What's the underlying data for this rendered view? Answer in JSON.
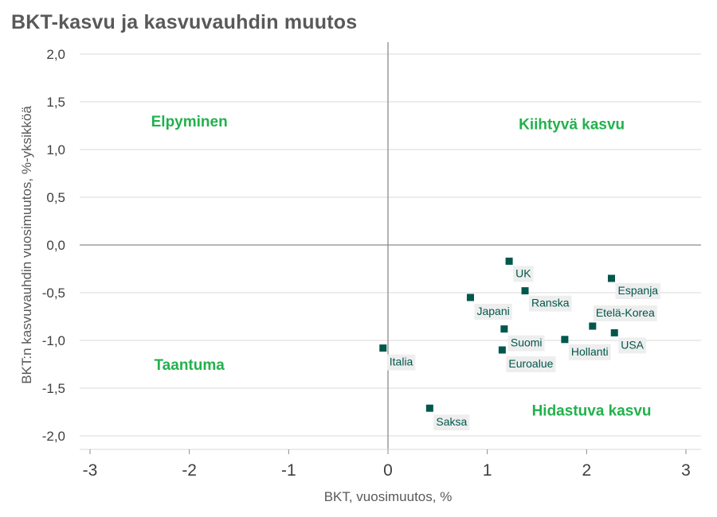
{
  "title": "BKT-kasvu ja kasvuvauhdin muutos",
  "colors": {
    "marker": "#00574b",
    "quadrant": "#22b14c",
    "grid": "#d9d9d9",
    "axis": "#8c8c8c",
    "label_bg": "#eeeeee"
  },
  "chart_data": {
    "type": "scatter",
    "title": "BKT-kasvu ja kasvuvauhdin muutos",
    "xlabel": "BKT, vuosimuutos, %",
    "ylabel": "BKT:n kasvuvauhdin vuosimuutos, %-yksikköä",
    "xlim": [
      -3,
      3
    ],
    "ylim": [
      -2,
      2
    ],
    "x_ticks": [
      -3,
      -2,
      -1,
      0,
      1,
      2,
      3
    ],
    "x_tick_labels": [
      "-3",
      "-2",
      "-1",
      "0",
      "1",
      "2",
      "3"
    ],
    "y_ticks": [
      2,
      1.5,
      1,
      0.5,
      0,
      -0.5,
      -1,
      -1.5,
      -2
    ],
    "y_tick_labels": [
      "2,0",
      "1,5",
      "1,0",
      "0,5",
      "0,0",
      "-0,5",
      "-1,0",
      "-1,5",
      "-2,0"
    ],
    "grid": "horizontal",
    "quadrant_labels": [
      {
        "text": "Elpyminen",
        "x": -2.0,
        "y": 1.3
      },
      {
        "text": "Kiihtyvä kasvu",
        "x": 1.85,
        "y": 1.27
      },
      {
        "text": "Taantuma",
        "x": -2.0,
        "y": -1.25
      },
      {
        "text": "Hidastuva kasvu",
        "x": 2.05,
        "y": -1.73
      }
    ],
    "points": [
      {
        "label": "UK",
        "x": 1.22,
        "y": -0.17
      },
      {
        "label": "Espanja",
        "x": 2.25,
        "y": -0.35
      },
      {
        "label": "Ranska",
        "x": 1.38,
        "y": -0.48
      },
      {
        "label": "Japani",
        "x": 0.83,
        "y": -0.55
      },
      {
        "label": "Etelä-Korea",
        "x": 2.06,
        "y": -0.85
      },
      {
        "label": "Suomi",
        "x": 1.17,
        "y": -0.88
      },
      {
        "label": "USA",
        "x": 2.28,
        "y": -0.92
      },
      {
        "label": "Hollanti",
        "x": 1.78,
        "y": -0.99
      },
      {
        "label": "Euroalue",
        "x": 1.15,
        "y": -1.1
      },
      {
        "label": "Italia",
        "x": -0.05,
        "y": -1.08
      },
      {
        "label": "Saksa",
        "x": 0.42,
        "y": -1.71
      }
    ]
  }
}
